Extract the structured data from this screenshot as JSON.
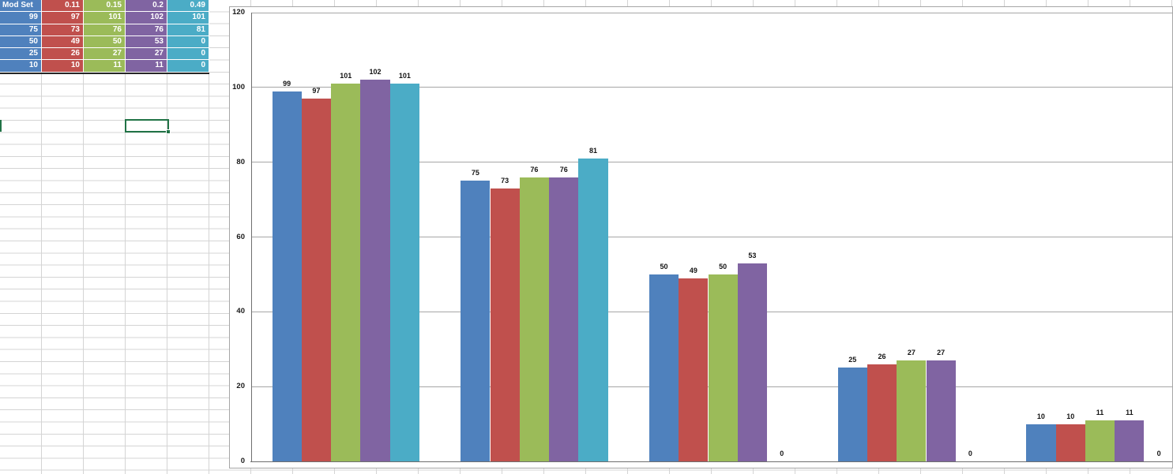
{
  "spreadsheet": {
    "table": {
      "header": [
        "Mod Set",
        "0.11",
        "0.15",
        "0.2",
        "0.49"
      ],
      "rows": [
        [
          99,
          97,
          101,
          102,
          101
        ],
        [
          75,
          73,
          76,
          76,
          81
        ],
        [
          50,
          49,
          50,
          53,
          0
        ],
        [
          25,
          26,
          27,
          27,
          0
        ],
        [
          10,
          10,
          11,
          11,
          0
        ]
      ],
      "column_colors": [
        "#4F81BD",
        "#C0504D",
        "#9BBB59",
        "#8064A2",
        "#4BACC6"
      ]
    },
    "selection": {
      "accent_color": "#217346"
    }
  },
  "chart_data": {
    "type": "bar",
    "title": "",
    "xlabel": "",
    "ylabel": "",
    "categories": [
      "",
      "",
      "",
      "",
      ""
    ],
    "series": [
      {
        "name": "Mod Set",
        "color": "#4F81BD",
        "values": [
          99,
          75,
          50,
          25,
          10
        ]
      },
      {
        "name": "0.11",
        "color": "#C0504D",
        "values": [
          97,
          73,
          49,
          26,
          10
        ]
      },
      {
        "name": "0.15",
        "color": "#9BBB59",
        "values": [
          101,
          76,
          50,
          27,
          11
        ]
      },
      {
        "name": "0.2",
        "color": "#8064A2",
        "values": [
          102,
          76,
          53,
          27,
          11
        ]
      },
      {
        "name": "0.49",
        "color": "#4BACC6",
        "values": [
          101,
          81,
          0,
          0,
          0
        ]
      }
    ],
    "ylim": [
      0,
      120
    ],
    "yticks": [
      0,
      20,
      40,
      60,
      80,
      100,
      120
    ],
    "ytick_labels": [
      "0",
      "20",
      "40",
      "60",
      "80",
      "100",
      "120"
    ],
    "grid": true,
    "legend": "none",
    "data_labels": true
  }
}
